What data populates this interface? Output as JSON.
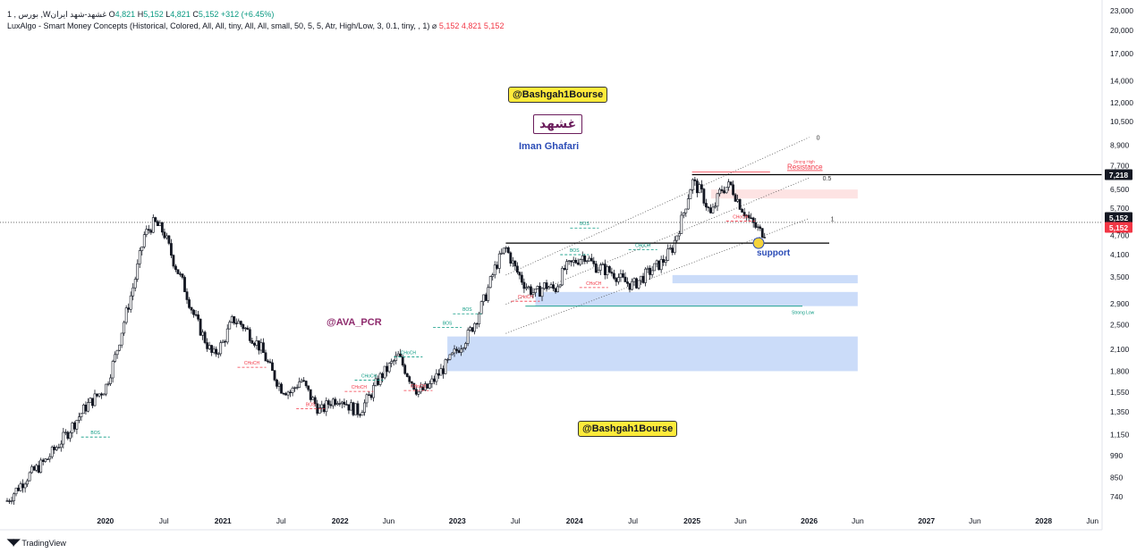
{
  "header": {
    "line1": {
      "name": "1 , بورس ,Wغشهد-شهد ایران",
      "o_label": "O",
      "o": "4,821",
      "h_label": "H",
      "h": "5,152",
      "l_label": "L",
      "l": "4,821",
      "c_label": "C",
      "c": "5,152",
      "change": "+312 (+6.45%)"
    },
    "line2": {
      "indicator": "LuxAlgo - Smart Money Concepts (Historical, Colored, All, All, tiny, All, All, small, 50, 5, 5, Atr, High/Low, 3, 0.1, tiny, , 1)",
      "eye": "⌀",
      "v1": "5,152",
      "v2": "4,821",
      "v3": "5,152"
    }
  },
  "annotations": {
    "badge_top": "@Bashgah1Bourse",
    "badge_bottom": "@Bashgah1Bourse",
    "logo_text": "غشهد",
    "author": "Iman Ghafari",
    "channel": "@AVA_PCR",
    "support": "support",
    "resistance": "Resistance",
    "strong_low": "Strong Low",
    "strong_high": "Strong High",
    "fib_0": "0",
    "fib_05": "0.5",
    "fib_1": "1"
  },
  "price_tags": {
    "resistance": "7,218",
    "last": "5,152",
    "last_red": "5,152"
  },
  "footer": {
    "brand": "TradingView"
  },
  "colors": {
    "up": "#089981",
    "down": "#f23645",
    "candle": "#131722",
    "zone_blue": "#c5d8f8",
    "zone_red": "#fde0e0",
    "badge": "#ffeb3b",
    "support_dot": "#f5d33b"
  },
  "chart_data": {
    "type": "candlestick",
    "yscale": "log",
    "ylim": [
      700,
      23000
    ],
    "y_ticks": [
      23000,
      20000,
      17000,
      14000,
      12000,
      10500,
      8900,
      7700,
      6500,
      5700,
      4700,
      4100,
      3500,
      2900,
      2500,
      2100,
      1800,
      1550,
      1350,
      1150,
      990,
      850,
      740
    ],
    "y_tick_labels": [
      "23,000",
      "20,000",
      "17,000",
      "14,000",
      "12,000",
      "10,500",
      "8,900",
      "7,700",
      "6,500",
      "5,700",
      "4,700",
      "4,100",
      "3,500",
      "2,900",
      "2,500",
      "2,100",
      "1,800",
      "1,550",
      "1,350",
      "1,150",
      "990",
      "850",
      "740"
    ],
    "x_ticks": [
      {
        "date": "2020-01",
        "label": "2020",
        "bold": true
      },
      {
        "date": "2020-07",
        "label": "Jul"
      },
      {
        "date": "2021-01",
        "label": "2021",
        "bold": true
      },
      {
        "date": "2021-07",
        "label": "Jul"
      },
      {
        "date": "2022-01",
        "label": "2022",
        "bold": true
      },
      {
        "date": "2022-06",
        "label": "Jun"
      },
      {
        "date": "2023-01",
        "label": "2023",
        "bold": true
      },
      {
        "date": "2023-07",
        "label": "Jul"
      },
      {
        "date": "2024-01",
        "label": "2024",
        "bold": true
      },
      {
        "date": "2024-07",
        "label": "Jul"
      },
      {
        "date": "2025-01",
        "label": "2025",
        "bold": true
      },
      {
        "date": "2025-06",
        "label": "Jun"
      },
      {
        "date": "2026-01",
        "label": "2026",
        "bold": true
      },
      {
        "date": "2026-06",
        "label": "Jun"
      },
      {
        "date": "2027-01",
        "label": "2027",
        "bold": true
      },
      {
        "date": "2027-06",
        "label": "Jun"
      },
      {
        "date": "2028-01",
        "label": "2028",
        "bold": true
      },
      {
        "date": "2028-06",
        "label": "Jun"
      }
    ],
    "price_path": [
      [
        "2019-03",
        720
      ],
      [
        "2019-05",
        850
      ],
      [
        "2019-07",
        960
      ],
      [
        "2019-09",
        1150
      ],
      [
        "2019-11",
        1400
      ],
      [
        "2020-01",
        1600
      ],
      [
        "2020-02",
        2000
      ],
      [
        "2020-03",
        2600
      ],
      [
        "2020-04",
        3400
      ],
      [
        "2020-05",
        4700
      ],
      [
        "2020-06",
        5150
      ],
      [
        "2020-07",
        4800
      ],
      [
        "2020-08",
        3900
      ],
      [
        "2020-09",
        3300
      ],
      [
        "2020-10",
        2700
      ],
      [
        "2020-11",
        2300
      ],
      [
        "2020-12",
        2000
      ],
      [
        "2021-01",
        2200
      ],
      [
        "2021-02",
        2600
      ],
      [
        "2021-03",
        2500
      ],
      [
        "2021-04",
        2300
      ],
      [
        "2021-05",
        2100
      ],
      [
        "2021-06",
        1800
      ],
      [
        "2021-07",
        1600
      ],
      [
        "2021-08",
        1550
      ],
      [
        "2021-09",
        1700
      ],
      [
        "2021-10",
        1500
      ],
      [
        "2021-11",
        1350
      ],
      [
        "2021-12",
        1450
      ],
      [
        "2022-01",
        1500
      ],
      [
        "2022-02",
        1400
      ],
      [
        "2022-03",
        1350
      ],
      [
        "2022-04",
        1500
      ],
      [
        "2022-05",
        1700
      ],
      [
        "2022-06",
        1850
      ],
      [
        "2022-07",
        2000
      ],
      [
        "2022-08",
        1750
      ],
      [
        "2022-09",
        1550
      ],
      [
        "2022-10",
        1600
      ],
      [
        "2022-11",
        1750
      ],
      [
        "2022-12",
        1900
      ],
      [
        "2023-01",
        2100
      ],
      [
        "2023-02",
        2300
      ],
      [
        "2023-03",
        2600
      ],
      [
        "2023-04",
        3100
      ],
      [
        "2023-05",
        3800
      ],
      [
        "2023-06",
        4300
      ],
      [
        "2023-07",
        3700
      ],
      [
        "2023-08",
        3300
      ],
      [
        "2023-09",
        3100
      ],
      [
        "2023-10",
        3300
      ],
      [
        "2023-11",
        3200
      ],
      [
        "2023-12",
        3700
      ],
      [
        "2024-01",
        3900
      ],
      [
        "2024-02",
        4100
      ],
      [
        "2024-03",
        3800
      ],
      [
        "2024-04",
        3700
      ],
      [
        "2024-05",
        3600
      ],
      [
        "2024-06",
        3400
      ],
      [
        "2024-07",
        3300
      ],
      [
        "2024-08",
        3500
      ],
      [
        "2024-09",
        3700
      ],
      [
        "2024-10",
        3900
      ],
      [
        "2024-11",
        4300
      ],
      [
        "2024-12",
        5300
      ],
      [
        "2025-01",
        6900
      ],
      [
        "2025-02",
        6300
      ],
      [
        "2025-03",
        5400
      ],
      [
        "2025-04",
        6500
      ],
      [
        "2025-05",
        6700
      ],
      [
        "2025-06",
        5800
      ],
      [
        "2025-07",
        5200
      ],
      [
        "2025-08",
        4821
      ]
    ],
    "last": {
      "open": 4821,
      "high": 5152,
      "low": 4821,
      "close": 5152,
      "change": 312,
      "change_pct": 6.45
    },
    "levels": {
      "resistance": 7218,
      "support": 4450,
      "current": 5152
    },
    "zones": [
      {
        "kind": "supply",
        "from": "2025-03",
        "to": "2026-06",
        "low": 6100,
        "high": 6500
      },
      {
        "kind": "demand",
        "from": "2024-11",
        "to": "2026-06",
        "low": 3350,
        "high": 3550
      },
      {
        "kind": "demand",
        "from": "2023-09",
        "to": "2026-06",
        "low": 2850,
        "high": 3150
      },
      {
        "kind": "demand",
        "from": "2022-12",
        "to": "2026-06",
        "low": 1800,
        "high": 2300
      }
    ],
    "smc_labels": [
      {
        "text": "BOS",
        "date": "2019-12",
        "price": 1130,
        "color": "up"
      },
      {
        "text": "CHoCH",
        "date": "2021-04",
        "price": 1850,
        "color": "down"
      },
      {
        "text": "BOS",
        "date": "2021-10",
        "price": 1380,
        "color": "down"
      },
      {
        "text": "CHoCH",
        "date": "2022-03",
        "price": 1560,
        "color": "down"
      },
      {
        "text": "CHoCH",
        "date": "2022-04",
        "price": 1690,
        "color": "up"
      },
      {
        "text": "CHoCH",
        "date": "2022-08",
        "price": 1990,
        "color": "up"
      },
      {
        "text": "CHoCH",
        "date": "2022-09",
        "price": 1570,
        "color": "down"
      },
      {
        "text": "BOS",
        "date": "2022-12",
        "price": 2450,
        "color": "up"
      },
      {
        "text": "BOS",
        "date": "2023-02",
        "price": 2700,
        "color": "up"
      },
      {
        "text": "BOS",
        "date": "2024-02",
        "price": 4950,
        "color": "up"
      },
      {
        "text": "BOS",
        "date": "2024-01",
        "price": 4100,
        "color": "up"
      },
      {
        "text": "CHoCH",
        "date": "2023-08",
        "price": 2950,
        "color": "down"
      },
      {
        "text": "CHoCH",
        "date": "2024-03",
        "price": 3250,
        "color": "down"
      },
      {
        "text": "CHoCH",
        "date": "2024-08",
        "price": 4250,
        "color": "up"
      },
      {
        "text": "CHoCH",
        "date": "2025-06",
        "price": 5200,
        "color": "down"
      }
    ],
    "channel": {
      "start": "2023-06",
      "end": "2026-01",
      "lower_start": 2350,
      "lower_end": 5300,
      "upper_start": 3550,
      "upper_end": 9400
    }
  }
}
